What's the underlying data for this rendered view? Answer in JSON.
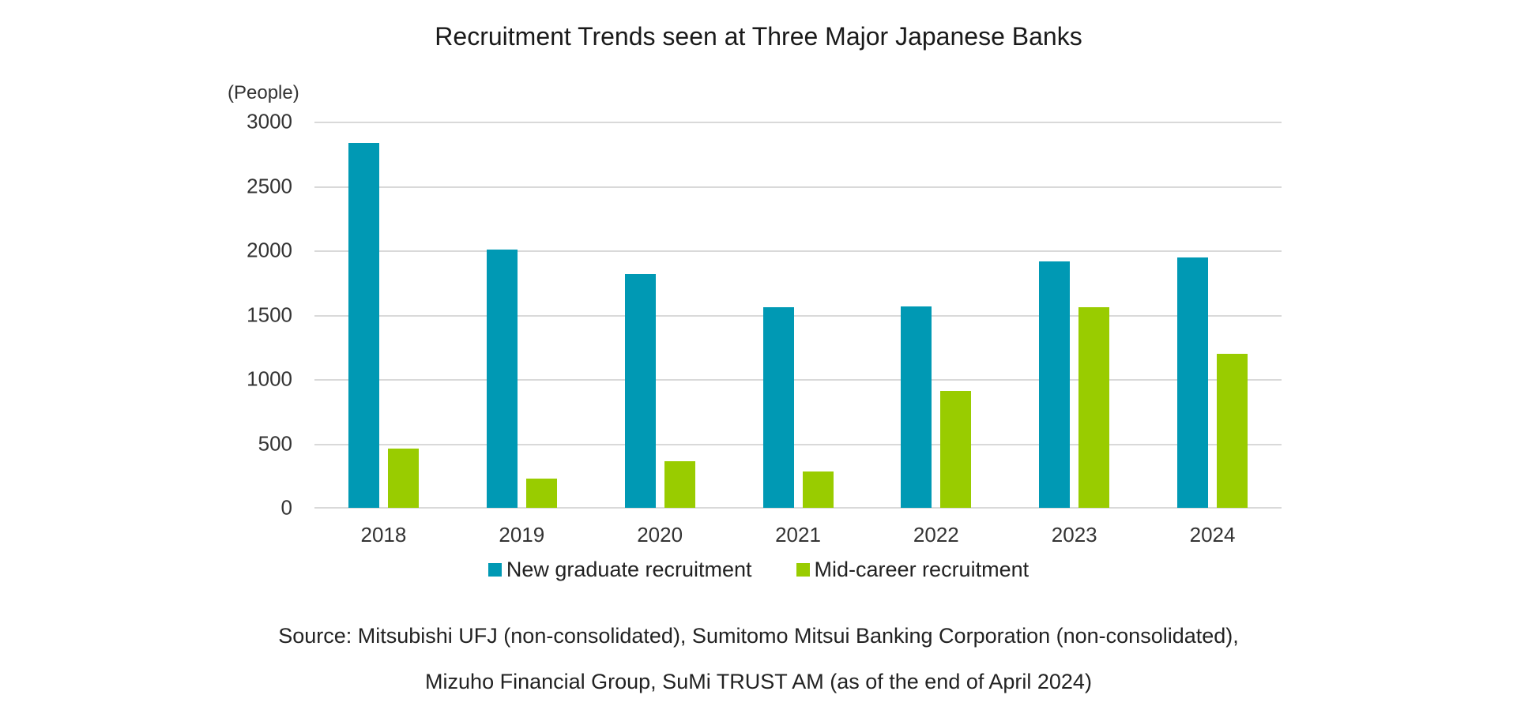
{
  "title": "Recruitment Trends seen at Three Major Japanese Banks",
  "y_unit": "(People)",
  "y_ticks": [
    "3000",
    "2500",
    "2000",
    "1500",
    "1000",
    "500",
    "0"
  ],
  "legend": {
    "series_0": "New graduate recruitment",
    "series_1": "Mid-career recruitment"
  },
  "source": {
    "line1": "Source: Mitsubishi UFJ (non-consolidated), Sumitomo Mitsui Banking Corporation (non-consolidated),",
    "line2": "Mizuho Financial Group, SuMi TRUST AM (as of the end of April 2024)"
  },
  "colors": {
    "new_graduate": "#0099B4",
    "mid_career": "#99CC00",
    "grid": "#D9D9D9"
  },
  "chart_data": {
    "type": "bar",
    "title": "Recruitment Trends seen at Three Major Japanese Banks",
    "xlabel": "",
    "ylabel": "(People)",
    "ylim": [
      0,
      3000
    ],
    "yticks": [
      0,
      500,
      1000,
      1500,
      2000,
      2500,
      3000
    ],
    "grid": true,
    "legend_position": "bottom",
    "categories": [
      "2018",
      "2019",
      "2020",
      "2021",
      "2022",
      "2023",
      "2024"
    ],
    "series": [
      {
        "name": "New graduate recruitment",
        "color": "#0099B4",
        "values": [
          2840,
          2010,
          1820,
          1560,
          1570,
          1920,
          1950
        ]
      },
      {
        "name": "Mid-career recruitment",
        "color": "#99CC00",
        "values": [
          460,
          230,
          360,
          280,
          910,
          1560,
          1200
        ]
      }
    ],
    "annotations": [
      "Source: Mitsubishi UFJ (non-consolidated), Sumitomo Mitsui Banking Corporation (non-consolidated), Mizuho Financial Group, SuMi TRUST AM (as of the end of April 2024)"
    ]
  }
}
